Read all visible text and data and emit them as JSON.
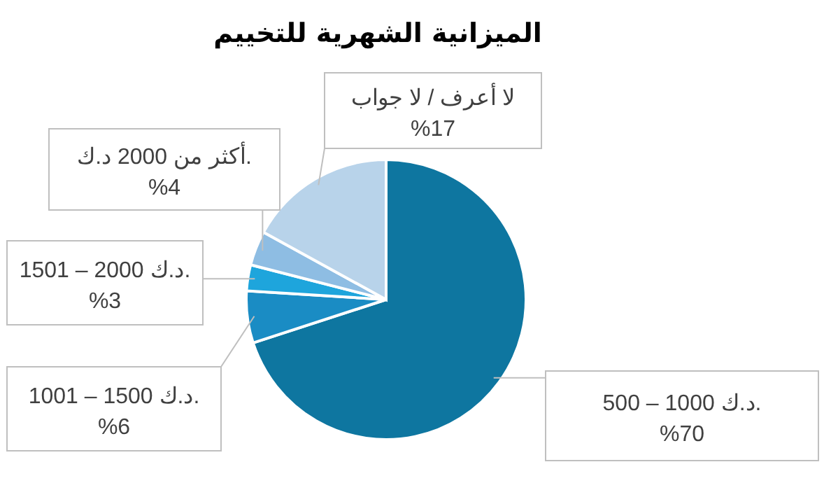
{
  "chart_data": {
    "type": "pie",
    "title": "الميزانية الشهرية للتخييم",
    "categories": [
      "500 – 1000 د.ك.",
      "1001 – 1500 د.ك.",
      "1501 – 2000 د.ك.",
      "أكثر من 2000 د.ك.",
      "لا أعرف / لا جواب"
    ],
    "values": [
      70,
      6,
      3,
      4,
      17
    ],
    "value_labels": [
      "%70",
      "%6",
      "%3",
      "%4",
      "%17"
    ],
    "colors": [
      "#0e76a0",
      "#1a8cc4",
      "#1ea5dc",
      "#8ebde3",
      "#b8d3ea"
    ]
  }
}
